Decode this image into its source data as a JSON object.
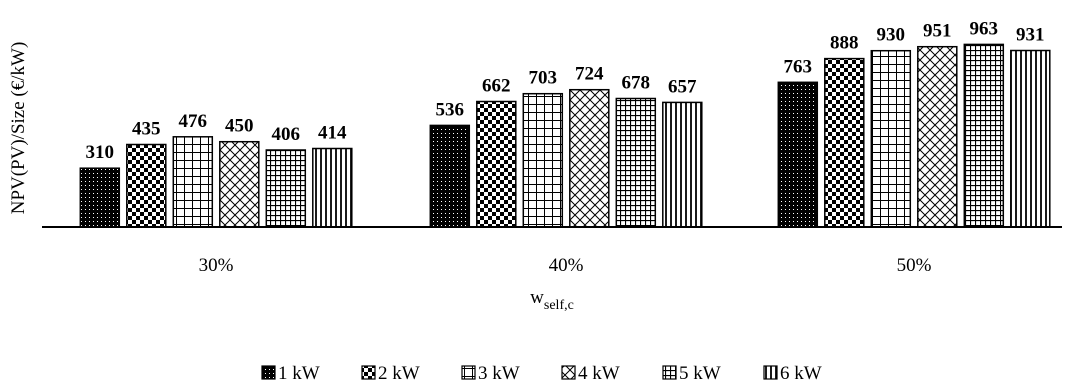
{
  "chart_data": {
    "type": "bar",
    "categories": [
      "30%",
      "40%",
      "50%"
    ],
    "series": [
      {
        "name": "1 kW",
        "values": [
          310,
          536,
          763
        ],
        "pattern": "dots"
      },
      {
        "name": "2 kW",
        "values": [
          435,
          662,
          888
        ],
        "pattern": "checker"
      },
      {
        "name": "3 kW",
        "values": [
          476,
          703,
          930
        ],
        "pattern": "grid"
      },
      {
        "name": "4 kW",
        "values": [
          450,
          724,
          951
        ],
        "pattern": "diagonal-cross"
      },
      {
        "name": "5 kW",
        "values": [
          406,
          678,
          963
        ],
        "pattern": "fine-grid"
      },
      {
        "name": "6 kW",
        "values": [
          414,
          657,
          931
        ],
        "pattern": "vertical-lines"
      }
    ],
    "ylabel": "NPV(PV)/Size (€/kW)",
    "xlabel": "w",
    "xlabel_subscript": "self,c",
    "ylim": [
      0,
      1000
    ],
    "grid": false,
    "legend_position": "bottom"
  }
}
